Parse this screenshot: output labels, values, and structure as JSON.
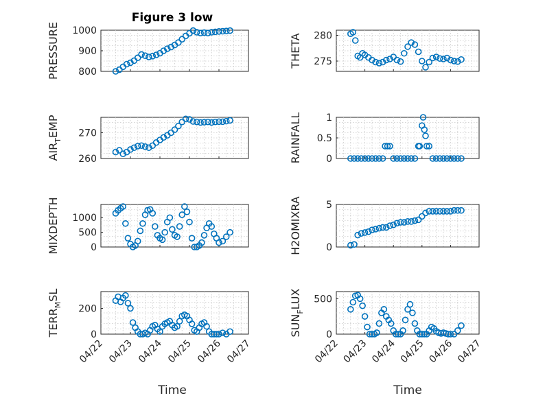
{
  "figure": {
    "title": "Figure 3 low",
    "xlabel": "Time",
    "date_ticks": [
      "04/22",
      "04/23",
      "04/24",
      "04/25",
      "04/26",
      "04/27"
    ],
    "marker": "circle-open",
    "marker_color": "#0072BD"
  },
  "chart_data": [
    {
      "type": "scatter",
      "ylabel": "PRESSURE",
      "title": "Figure 3 low",
      "xlim": [
        "04/22",
        "04/27"
      ],
      "ylim": [
        800,
        1000
      ],
      "yticks": [
        800,
        900,
        1000
      ],
      "grid": true,
      "series": [
        {
          "x": [
            "04/22 12:00",
            "04/22 15:00",
            "04/22 18:00",
            "04/22 21:00",
            "04/23 00:00",
            "04/23 03:00",
            "04/23 06:00",
            "04/23 09:00",
            "04/23 12:00",
            "04/23 15:00",
            "04/23 18:00",
            "04/23 21:00",
            "04/24 00:00",
            "04/24 03:00",
            "04/24 06:00",
            "04/24 09:00",
            "04/24 12:00",
            "04/24 15:00",
            "04/24 18:00",
            "04/24 21:00",
            "04/25 00:00",
            "04/25 03:00",
            "04/25 06:00",
            "04/25 09:00",
            "04/25 12:00",
            "04/25 15:00",
            "04/25 18:00",
            "04/25 21:00",
            "04/26 00:00",
            "04/26 03:00",
            "04/26 06:00",
            "04/26 09:00"
          ],
          "y": [
            800,
            808,
            822,
            835,
            842,
            852,
            866,
            882,
            876,
            870,
            874,
            880,
            888,
            900,
            910,
            918,
            928,
            940,
            956,
            972,
            985,
            998,
            990,
            986,
            988,
            986,
            990,
            992,
            994,
            995,
            996,
            998
          ]
        }
      ]
    },
    {
      "type": "scatter",
      "ylabel": "THETA",
      "ylim": [
        273,
        281
      ],
      "yticks": [
        275,
        280
      ],
      "grid": true,
      "series": [
        {
          "x": [
            "04/22 12:00",
            "04/22 14:00",
            "04/22 16:00",
            "04/22 18:00",
            "04/22 20:00",
            "04/22 22:00",
            "04/23 00:00",
            "04/23 03:00",
            "04/23 06:00",
            "04/23 09:00",
            "04/23 12:00",
            "04/23 15:00",
            "04/23 18:00",
            "04/23 21:00",
            "04/24 00:00",
            "04/24 03:00",
            "04/24 06:00",
            "04/24 09:00",
            "04/24 12:00",
            "04/24 15:00",
            "04/24 18:00",
            "04/24 21:00",
            "04/25 00:00",
            "04/25 03:00",
            "04/25 06:00",
            "04/25 09:00",
            "04/25 12:00",
            "04/25 15:00",
            "04/25 18:00",
            "04/25 21:00",
            "04/26 00:00",
            "04/26 03:00",
            "04/26 06:00",
            "04/26 09:00"
          ],
          "y": [
            280.3,
            280.6,
            279.0,
            276.0,
            275.7,
            276.5,
            276.2,
            275.7,
            275.2,
            274.8,
            274.6,
            274.8,
            275.2,
            275.4,
            275.8,
            275.2,
            274.9,
            276.5,
            277.8,
            278.6,
            278.2,
            276.8,
            275.0,
            273.8,
            274.8,
            275.6,
            275.8,
            275.5,
            275.4,
            275.6,
            275.2,
            275.0,
            274.9,
            275.3
          ]
        }
      ]
    },
    {
      "type": "scatter",
      "ylabel": "AIR_TEMP",
      "ylim": [
        260,
        276
      ],
      "yticks": [
        260,
        270
      ],
      "grid": true,
      "series": [
        {
          "x": [
            "04/22 12:00",
            "04/22 15:00",
            "04/22 18:00",
            "04/22 21:00",
            "04/23 00:00",
            "04/23 03:00",
            "04/23 06:00",
            "04/23 09:00",
            "04/23 12:00",
            "04/23 15:00",
            "04/23 18:00",
            "04/23 21:00",
            "04/24 00:00",
            "04/24 03:00",
            "04/24 06:00",
            "04/24 09:00",
            "04/24 12:00",
            "04/24 15:00",
            "04/24 18:00",
            "04/24 21:00",
            "04/25 00:00",
            "04/25 03:00",
            "04/25 06:00",
            "04/25 09:00",
            "04/25 12:00",
            "04/25 15:00",
            "04/25 18:00",
            "04/25 21:00",
            "04/26 00:00",
            "04/26 03:00",
            "04/26 06:00",
            "04/26 09:00"
          ],
          "y": [
            262.5,
            263.2,
            261.8,
            262.5,
            263.5,
            264.2,
            264.8,
            265.0,
            264.6,
            264.2,
            265.0,
            266.2,
            267.2,
            268.2,
            269.0,
            270.0,
            271.2,
            272.6,
            274.2,
            275.4,
            275.2,
            274.4,
            274.2,
            274.0,
            274.1,
            274.2,
            274.0,
            274.2,
            274.3,
            274.3,
            274.5,
            274.8
          ]
        }
      ]
    },
    {
      "type": "scatter",
      "ylabel": "RAINFALL",
      "ylim": [
        0,
        1
      ],
      "yticks": [
        0,
        0.5,
        1
      ],
      "grid": true,
      "series": [
        {
          "x": [
            "04/22 12:00",
            "04/22 15:00",
            "04/22 18:00",
            "04/22 21:00",
            "04/23 00:00",
            "04/23 03:00",
            "04/23 06:00",
            "04/23 09:00",
            "04/23 12:00",
            "04/23 15:00",
            "04/23 17:00",
            "04/23 19:00",
            "04/23 21:00",
            "04/24 00:00",
            "04/24 03:00",
            "04/24 06:00",
            "04/24 09:00",
            "04/24 12:00",
            "04/24 15:00",
            "04/24 18:00",
            "04/24 21:00",
            "04/24 22:00",
            "04/25 00:00",
            "04/25 01:00",
            "04/25 02:00",
            "04/25 03:00",
            "04/25 04:00",
            "04/25 06:00",
            "04/25 09:00",
            "04/25 12:00",
            "04/25 15:00",
            "04/25 18:00",
            "04/25 21:00",
            "04/26 00:00",
            "04/26 03:00",
            "04/26 06:00",
            "04/26 09:00"
          ],
          "y": [
            0,
            0,
            0,
            0,
            0,
            0,
            0,
            0,
            0,
            0,
            0.3,
            0.3,
            0.3,
            0,
            0,
            0,
            0,
            0,
            0,
            0,
            0.3,
            0.3,
            0.8,
            1.0,
            0.7,
            0.55,
            0.3,
            0.3,
            0,
            0,
            0,
            0,
            0,
            0,
            0,
            0,
            0
          ]
        }
      ]
    },
    {
      "type": "scatter",
      "ylabel": "MIXDEPTH",
      "ylim": [
        0,
        1450
      ],
      "yticks": [
        0,
        500,
        1000
      ],
      "grid": true,
      "series": [
        {
          "x": [
            "04/22 12:00",
            "04/22 14:00",
            "04/22 16:00",
            "04/22 18:00",
            "04/22 20:00",
            "04/22 22:00",
            "04/23 00:00",
            "04/23 02:00",
            "04/23 04:00",
            "04/23 06:00",
            "04/23 08:00",
            "04/23 10:00",
            "04/23 12:00",
            "04/23 14:00",
            "04/23 16:00",
            "04/23 18:00",
            "04/23 20:00",
            "04/23 22:00",
            "04/24 00:00",
            "04/24 02:00",
            "04/24 04:00",
            "04/24 06:00",
            "04/24 08:00",
            "04/24 10:00",
            "04/24 12:00",
            "04/24 14:00",
            "04/24 16:00",
            "04/24 18:00",
            "04/24 20:00",
            "04/24 22:00",
            "04/25 00:00",
            "04/25 02:00",
            "04/25 04:00",
            "04/25 06:00",
            "04/25 08:00",
            "04/25 10:00",
            "04/25 12:00",
            "04/25 14:00",
            "04/25 16:00",
            "04/25 18:00",
            "04/25 20:00",
            "04/25 22:00",
            "04/26 00:00",
            "04/26 03:00",
            "04/26 06:00",
            "04/26 09:00"
          ],
          "y": [
            1150,
            1250,
            1320,
            1380,
            800,
            300,
            100,
            0,
            50,
            200,
            550,
            800,
            1100,
            1250,
            1280,
            1150,
            700,
            400,
            300,
            250,
            500,
            850,
            1000,
            600,
            400,
            350,
            700,
            1100,
            1380,
            1200,
            850,
            300,
            0,
            0,
            50,
            150,
            400,
            650,
            800,
            700,
            450,
            300,
            150,
            200,
            350,
            500
          ]
        }
      ]
    },
    {
      "type": "scatter",
      "ylabel": "H2OMIXRA",
      "ylim": [
        0,
        5
      ],
      "yticks": [
        0,
        5
      ],
      "grid": true,
      "series": [
        {
          "x": [
            "04/22 12:00",
            "04/22 15:00",
            "04/22 18:00",
            "04/22 21:00",
            "04/23 00:00",
            "04/23 03:00",
            "04/23 06:00",
            "04/23 09:00",
            "04/23 12:00",
            "04/23 15:00",
            "04/23 18:00",
            "04/23 21:00",
            "04/24 00:00",
            "04/24 03:00",
            "04/24 06:00",
            "04/24 09:00",
            "04/24 12:00",
            "04/24 15:00",
            "04/24 18:00",
            "04/24 21:00",
            "04/25 00:00",
            "04/25 03:00",
            "04/25 06:00",
            "04/25 09:00",
            "04/25 12:00",
            "04/25 15:00",
            "04/25 18:00",
            "04/25 21:00",
            "04/26 00:00",
            "04/26 03:00",
            "04/26 06:00",
            "04/26 09:00"
          ],
          "y": [
            0.2,
            0.3,
            1.4,
            1.6,
            1.7,
            1.8,
            2.0,
            2.1,
            2.2,
            2.3,
            2.3,
            2.5,
            2.6,
            2.8,
            2.9,
            2.9,
            3.0,
            3.0,
            3.1,
            3.2,
            3.6,
            4.0,
            4.2,
            4.2,
            4.2,
            4.2,
            4.2,
            4.2,
            4.2,
            4.3,
            4.3,
            4.3
          ]
        }
      ]
    },
    {
      "type": "scatter",
      "ylabel": "TERR_MSL",
      "ylim": [
        0,
        330
      ],
      "yticks": [
        0,
        200
      ],
      "grid": true,
      "series": [
        {
          "x": [
            "04/22 12:00",
            "04/22 14:00",
            "04/22 16:00",
            "04/22 18:00",
            "04/22 20:00",
            "04/22 22:00",
            "04/23 00:00",
            "04/23 02:00",
            "04/23 04:00",
            "04/23 06:00",
            "04/23 08:00",
            "04/23 10:00",
            "04/23 12:00",
            "04/23 14:00",
            "04/23 16:00",
            "04/23 18:00",
            "04/23 20:00",
            "04/23 22:00",
            "04/24 00:00",
            "04/24 02:00",
            "04/24 04:00",
            "04/24 06:00",
            "04/24 08:00",
            "04/24 10:00",
            "04/24 12:00",
            "04/24 14:00",
            "04/24 16:00",
            "04/24 18:00",
            "04/24 20:00",
            "04/24 22:00",
            "04/25 00:00",
            "04/25 02:00",
            "04/25 04:00",
            "04/25 06:00",
            "04/25 08:00",
            "04/25 10:00",
            "04/25 12:00",
            "04/25 14:00",
            "04/25 16:00",
            "04/25 18:00",
            "04/25 20:00",
            "04/25 22:00",
            "04/26 00:00",
            "04/26 03:00",
            "04/26 06:00",
            "04/26 09:00"
          ],
          "y": [
            260,
            290,
            250,
            280,
            300,
            240,
            200,
            90,
            50,
            20,
            0,
            0,
            10,
            0,
            30,
            60,
            70,
            40,
            20,
            60,
            80,
            90,
            100,
            70,
            50,
            60,
            100,
            140,
            150,
            140,
            110,
            80,
            30,
            20,
            50,
            80,
            90,
            60,
            20,
            0,
            0,
            0,
            0,
            10,
            0,
            20
          ]
        }
      ]
    },
    {
      "type": "scatter",
      "ylabel": "SUN_FLUX",
      "ylim": [
        0,
        600
      ],
      "yticks": [
        0,
        500
      ],
      "grid": true,
      "series": [
        {
          "x": [
            "04/22 12:00",
            "04/22 14:00",
            "04/22 16:00",
            "04/22 18:00",
            "04/22 20:00",
            "04/22 22:00",
            "04/23 00:00",
            "04/23 02:00",
            "04/23 04:00",
            "04/23 06:00",
            "04/23 08:00",
            "04/23 10:00",
            "04/23 12:00",
            "04/23 14:00",
            "04/23 16:00",
            "04/23 18:00",
            "04/23 20:00",
            "04/23 22:00",
            "04/24 00:00",
            "04/24 02:00",
            "04/24 04:00",
            "04/24 06:00",
            "04/24 08:00",
            "04/24 10:00",
            "04/24 12:00",
            "04/24 14:00",
            "04/24 16:00",
            "04/24 18:00",
            "04/24 20:00",
            "04/24 22:00",
            "04/25 00:00",
            "04/25 02:00",
            "04/25 04:00",
            "04/25 06:00",
            "04/25 08:00",
            "04/25 10:00",
            "04/25 12:00",
            "04/25 14:00",
            "04/25 16:00",
            "04/25 18:00",
            "04/25 20:00",
            "04/25 22:00",
            "04/26 00:00",
            "04/26 03:00",
            "04/26 06:00",
            "04/26 09:00"
          ],
          "y": [
            350,
            450,
            540,
            550,
            500,
            400,
            250,
            100,
            0,
            0,
            0,
            20,
            150,
            300,
            350,
            250,
            200,
            150,
            50,
            0,
            0,
            0,
            50,
            200,
            350,
            420,
            300,
            150,
            50,
            0,
            0,
            0,
            0,
            50,
            100,
            80,
            40,
            20,
            10,
            20,
            10,
            0,
            0,
            0,
            50,
            120
          ]
        }
      ]
    }
  ]
}
